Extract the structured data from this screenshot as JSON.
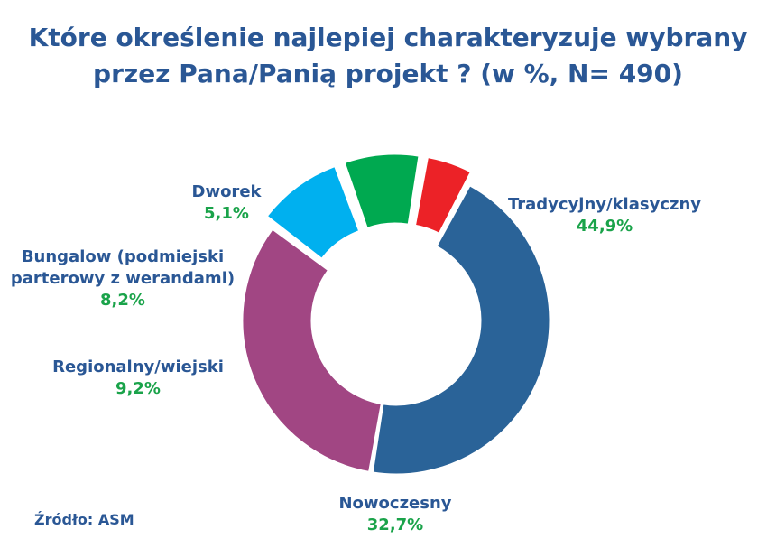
{
  "title": {
    "line1": "Które określenie najlepiej charakteryzuje wybrany",
    "line2": "przez Pana/Panią projekt ? (w %, N= 490)"
  },
  "source": "Źródło: ASM",
  "chart_data": {
    "type": "pie",
    "variant": "donut",
    "title": "Które określenie najlepiej charakteryzuje wybrany przez Pana/Panią projekt ? (w %, N= 490)",
    "legend": "none",
    "slices": [
      {
        "label": [
          "Tradycyjny/klasyczny"
        ],
        "value": 44.9,
        "value_label": "44,9%",
        "color": "#2a6398"
      },
      {
        "label": [
          "Nowoczesny"
        ],
        "value": 32.7,
        "value_label": "32,7%",
        "color": "#a14683"
      },
      {
        "label": [
          "Regionalny/wiejski"
        ],
        "value": 9.2,
        "value_label": "9,2%",
        "color": "#00b0ef"
      },
      {
        "label": [
          "Bungalow (podmiejski",
          "parterowy z werandami)"
        ],
        "value": 8.2,
        "value_label": "8,2%",
        "color": "#00a950"
      },
      {
        "label": [
          "Dworek"
        ],
        "value": 5.1,
        "value_label": "5,1%",
        "color": "#ec2227"
      }
    ]
  }
}
